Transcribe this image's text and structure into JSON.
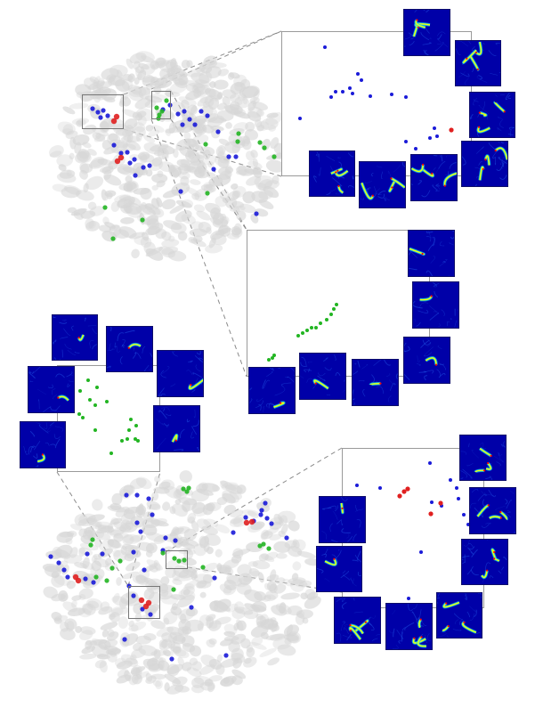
{
  "figure": {
    "description_free": true,
    "palette": {
      "background_points": "#d6d6d6",
      "blue_points": "#1a1ad8",
      "green_points": "#22b522",
      "red_points": "#e02020",
      "thumbnail_base": "#0000a8",
      "heat_colors": [
        "#00c8ff",
        "#7dff7a",
        "#ffff00",
        "#ff6a00",
        "#ff0000"
      ],
      "frame": "#9a9a9a",
      "connector": "#8a8a8a"
    },
    "icons": {
      "embedding": "scatter-embedding",
      "zoom_panel": "zoom-inset",
      "thumbnail": "heatmap-thumbnail"
    }
  }
}
